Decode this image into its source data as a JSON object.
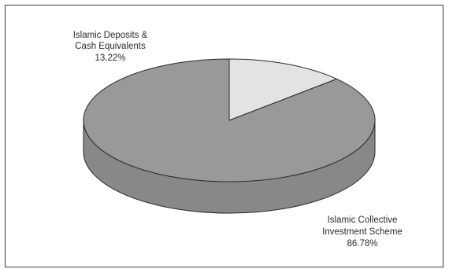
{
  "chart_data": {
    "type": "pie",
    "title": "",
    "style": "3d-tilted",
    "slices": [
      {
        "label_lines": [
          "Islamic Deposits &",
          "Cash Equivalents"
        ],
        "value": 13.22,
        "value_label": "13.22%",
        "color": "#e3e3e3"
      },
      {
        "label_lines": [
          "Islamic Collective",
          "Investment Scheme"
        ],
        "value": 86.78,
        "value_label": "86.78%",
        "color": "#999999"
      }
    ],
    "colors": {
      "outline": "#2a2a2a",
      "side_dark": "#888888",
      "side_light": "#cfcfcf"
    }
  }
}
